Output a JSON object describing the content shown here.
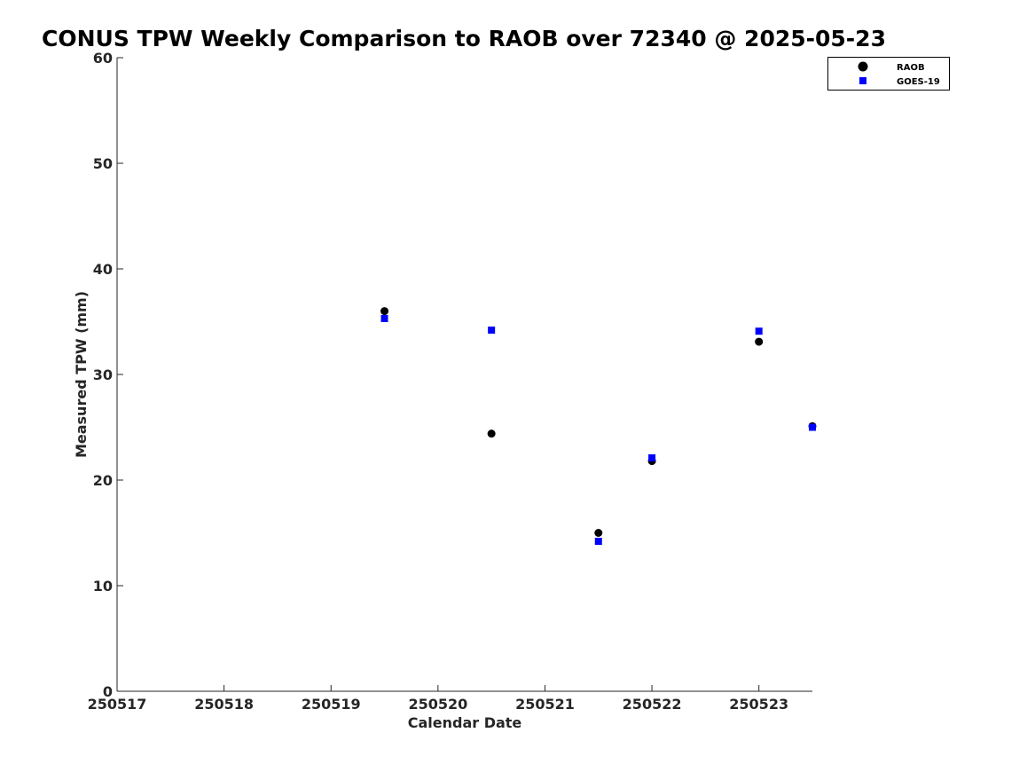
{
  "chart_data": {
    "type": "scatter",
    "title": "CONUS TPW Weekly Comparison to RAOB over 72340 @ 2025-05-23",
    "xlabel": "Calendar Date",
    "ylabel": "Measured TPW (mm)",
    "xlim": [
      250517,
      250523.5
    ],
    "ylim": [
      0,
      60
    ],
    "x_ticks": [
      250517,
      250518,
      250519,
      250520,
      250521,
      250522,
      250523
    ],
    "x_tick_labels": [
      "250517",
      "250518",
      "250519",
      "250520",
      "250521",
      "250522",
      "250523"
    ],
    "y_ticks": [
      0,
      10,
      20,
      30,
      40,
      50,
      60
    ],
    "y_tick_labels": [
      "0",
      "10",
      "20",
      "30",
      "40",
      "50",
      "60"
    ],
    "grid": false,
    "legend_position": "top-right",
    "series": [
      {
        "name": "RAOB",
        "marker": "circle",
        "color": "#000000",
        "points": [
          {
            "x": 250519.5,
            "y": 36.0
          },
          {
            "x": 250520.5,
            "y": 24.4
          },
          {
            "x": 250521.5,
            "y": 15.0
          },
          {
            "x": 250522.0,
            "y": 21.8
          },
          {
            "x": 250523.0,
            "y": 33.1
          },
          {
            "x": 250523.5,
            "y": 25.1
          }
        ]
      },
      {
        "name": "GOES-19",
        "marker": "square",
        "color": "#0000ff",
        "points": [
          {
            "x": 250519.5,
            "y": 35.3
          },
          {
            "x": 250520.5,
            "y": 34.2
          },
          {
            "x": 250521.5,
            "y": 14.2
          },
          {
            "x": 250522.0,
            "y": 22.1
          },
          {
            "x": 250523.0,
            "y": 34.1
          },
          {
            "x": 250523.5,
            "y": 25.0
          }
        ]
      }
    ]
  }
}
